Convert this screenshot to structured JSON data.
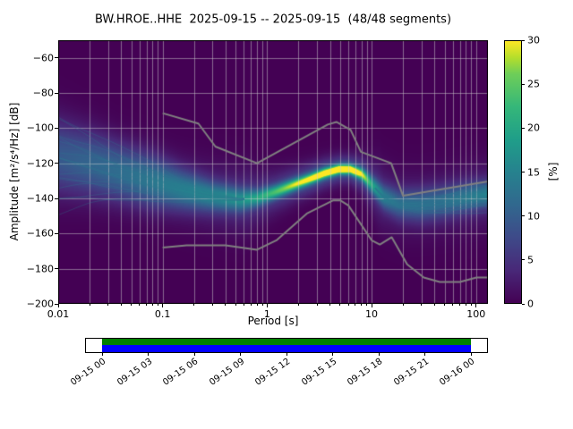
{
  "figure": {
    "title": "BW.HROE..HHE  2025-09-15 -- 2025-09-15  (48/48 segments)",
    "xlabel": "Period [s]",
    "ylabel": "Amplitude [m²/s⁴/Hz] [dB]",
    "colorbar_label": "[%]"
  },
  "chart_data": {
    "type": "heatmap",
    "subtype": "ppsd-probability-density",
    "station_id": "BW.HROE..HHE",
    "date_range": "2025-09-15 -- 2025-09-15",
    "segments_used": 48,
    "segments_total": 48,
    "title": "BW.HROE..HHE  2025-09-15 -- 2025-09-15  (48/48 segments)",
    "xlabel": "Period [s]",
    "ylabel": "Amplitude [m²/s⁴/Hz] [dB]",
    "xscale": "log",
    "xlim": [
      0.01,
      130
    ],
    "ylim": [
      -200,
      -50
    ],
    "xticks": [
      {
        "v": 0.01,
        "label": "0.01"
      },
      {
        "v": 0.1,
        "label": "0.1"
      },
      {
        "v": 1,
        "label": "1"
      },
      {
        "v": 10,
        "label": "10"
      },
      {
        "v": 100,
        "label": "100"
      }
    ],
    "ytick_values": [
      -200,
      -180,
      -160,
      -140,
      -120,
      -100,
      -80,
      -60
    ],
    "ytick_labels": [
      "−200",
      "−180",
      "−160",
      "−140",
      "−120",
      "−100",
      "−80",
      "−60"
    ],
    "grid": true,
    "grid_color": "#cdcdcd",
    "grid_alpha": 0.5,
    "background": "#440154",
    "colorbar": {
      "label": "[%]",
      "min": 0,
      "max": 30,
      "ticks": [
        0,
        5,
        10,
        15,
        20,
        25,
        30
      ],
      "colormap": "viridis",
      "stops": [
        [
          0,
          "#440154"
        ],
        [
          0.125,
          "#482878"
        ],
        [
          0.25,
          "#3e4a89"
        ],
        [
          0.375,
          "#31688e"
        ],
        [
          0.5,
          "#26828e"
        ],
        [
          0.625,
          "#1f9e89"
        ],
        [
          0.75,
          "#35b779"
        ],
        [
          0.875,
          "#6ece58"
        ],
        [
          0.9375,
          "#b5de2b"
        ],
        [
          1,
          "#fde725"
        ]
      ]
    },
    "ppsd_ridge_format": "[period_s, mode_db, spread_db, peak_probability_pct]",
    "ppsd_ridge": [
      [
        0.01,
        -116,
        15,
        7
      ],
      [
        0.02,
        -120,
        13,
        8
      ],
      [
        0.045,
        -126,
        11,
        9
      ],
      [
        0.08,
        -130,
        10,
        10
      ],
      [
        0.15,
        -134.5,
        7.5,
        11
      ],
      [
        0.3,
        -138.5,
        5.5,
        12
      ],
      [
        0.55,
        -140.5,
        4.5,
        13
      ],
      [
        0.8,
        -139.5,
        3.2,
        15
      ],
      [
        1.2,
        -136,
        2.6,
        18
      ],
      [
        1.8,
        -132,
        2.2,
        22
      ],
      [
        2.6,
        -128.5,
        2.0,
        25
      ],
      [
        3.5,
        -125.5,
        1.9,
        28
      ],
      [
        4.8,
        -123.2,
        1.8,
        30
      ],
      [
        6.2,
        -123.2,
        1.8,
        29
      ],
      [
        8.0,
        -126,
        2.2,
        23
      ],
      [
        10,
        -132,
        3.2,
        15
      ],
      [
        13,
        -139,
        4.5,
        11
      ],
      [
        18,
        -143,
        5.5,
        9
      ],
      [
        28,
        -143.5,
        6,
        9
      ],
      [
        45,
        -142,
        6,
        9
      ],
      [
        70,
        -140,
        5.5,
        10
      ],
      [
        110,
        -138,
        5,
        11
      ],
      [
        170,
        -136.5,
        4.5,
        12
      ]
    ],
    "fan": {
      "offsets": [
        -1.9,
        -1.6,
        -1.35,
        -1.1,
        -0.88,
        -0.68,
        -0.5,
        -0.34,
        -0.2,
        -0.07,
        0.07,
        0.22,
        0.4,
        0.6,
        0.85,
        1.15,
        1.5
      ],
      "converge_period": 0.7,
      "right_start": 9,
      "right_scale": 0.85,
      "wobble": 2.5,
      "color": "#2a788e",
      "alpha": 0.32
    },
    "noise_models": {
      "color": "#808080",
      "high_nhnm": [
        [
          0.1,
          -91.5
        ],
        [
          0.22,
          -97.4
        ],
        [
          0.32,
          -110.5
        ],
        [
          0.8,
          -120.0
        ],
        [
          3.8,
          -98.0
        ],
        [
          4.6,
          -96.5
        ],
        [
          6.3,
          -101.0
        ],
        [
          7.9,
          -113.5
        ],
        [
          15.4,
          -120.0
        ],
        [
          20.0,
          -138.5
        ],
        [
          354.8,
          -126.0
        ]
      ],
      "low_nlnm": [
        [
          0.1,
          -168.0
        ],
        [
          0.17,
          -166.7
        ],
        [
          0.4,
          -166.7
        ],
        [
          0.8,
          -169.2
        ],
        [
          1.24,
          -163.7
        ],
        [
          2.4,
          -148.6
        ],
        [
          4.3,
          -141.1
        ],
        [
          5.0,
          -141.1
        ],
        [
          6.0,
          -144.0
        ],
        [
          10.0,
          -163.8
        ],
        [
          12.0,
          -166.2
        ],
        [
          15.6,
          -162.1
        ],
        [
          21.9,
          -177.5
        ],
        [
          31.6,
          -185.0
        ],
        [
          45.0,
          -187.5
        ],
        [
          70.0,
          -187.5
        ],
        [
          101.0,
          -185.0
        ],
        [
          154.0,
          -185.0
        ]
      ]
    }
  },
  "timeline": {
    "tick_labels": [
      "09-15 00",
      "09-15 03",
      "09-15 06",
      "09-15 09",
      "09-15 12",
      "09-15 15",
      "09-15 18",
      "09-15 21",
      "09-16 00"
    ],
    "bar_green": "#008000",
    "bar_blue": "#0000ff"
  }
}
